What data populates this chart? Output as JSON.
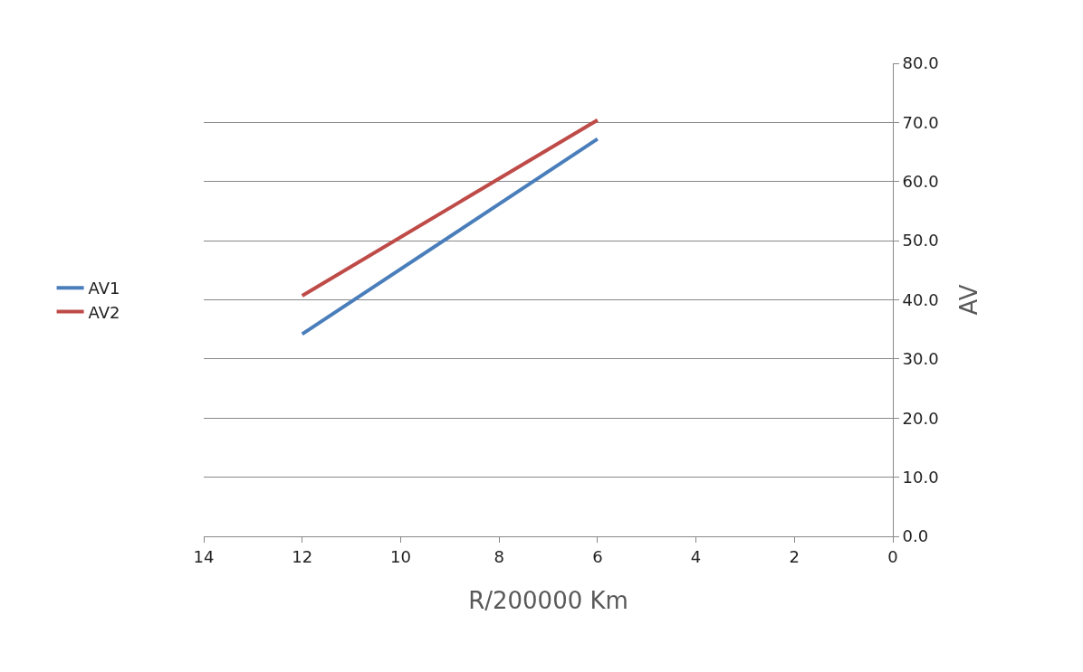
{
  "chart_data": {
    "type": "line",
    "xlabel": "R/200000 Km",
    "ylabel": "AV",
    "x": [
      12,
      6
    ],
    "series": [
      {
        "name": "AV1",
        "color": "#4a7ebb",
        "values": [
          34.2,
          67.2
        ]
      },
      {
        "name": "AV2",
        "color": "#be4b48",
        "values": [
          40.7,
          70.4
        ]
      }
    ],
    "xlim": [
      14,
      0
    ],
    "xticks": [
      14,
      12,
      10,
      8,
      6,
      4,
      2,
      0
    ],
    "ylim": [
      0,
      80
    ],
    "yticks": [
      {
        "value": 0,
        "label": "0.0"
      },
      {
        "value": 10,
        "label": "10.0"
      },
      {
        "value": 20,
        "label": "20.0"
      },
      {
        "value": 30,
        "label": "30.0"
      },
      {
        "value": 40,
        "label": "40.0"
      },
      {
        "value": 50,
        "label": "50.0"
      },
      {
        "value": 60,
        "label": "60.0"
      },
      {
        "value": 70,
        "label": "70.0"
      },
      {
        "value": 80,
        "label": "80.0"
      }
    ],
    "grid": "y",
    "legend": "left",
    "marker": "none",
    "line_style": "solid"
  }
}
